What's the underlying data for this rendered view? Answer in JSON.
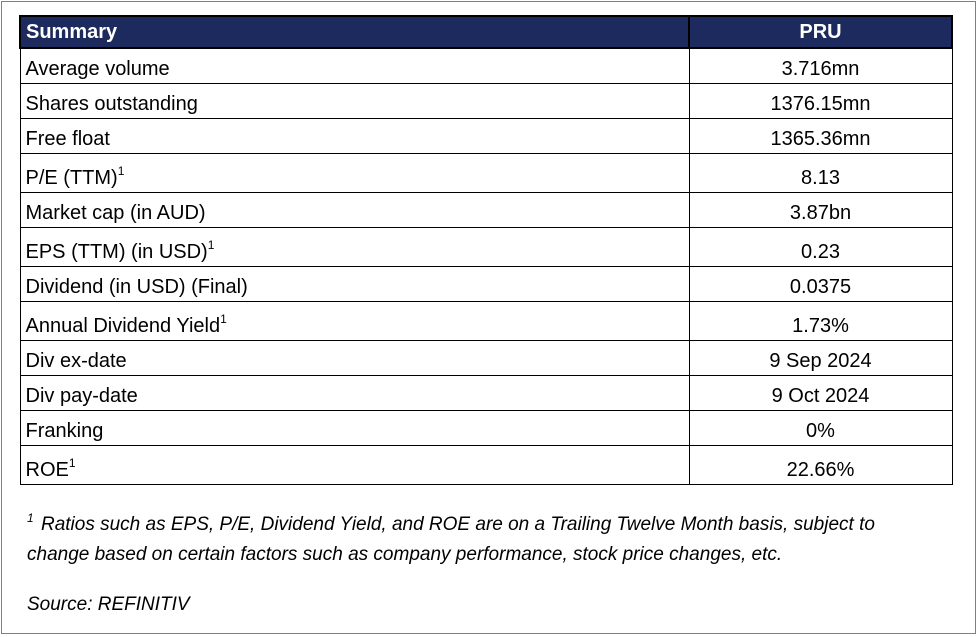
{
  "table": {
    "header": {
      "label": "Summary",
      "value": "PRU"
    },
    "rows": [
      {
        "label": "Average volume",
        "sup": "",
        "value": "3.716mn"
      },
      {
        "label": "Shares outstanding",
        "sup": "",
        "value": "1376.15mn"
      },
      {
        "label": "Free float",
        "sup": "",
        "value": "1365.36mn"
      },
      {
        "label": "P/E (TTM)",
        "sup": "1",
        "value": "8.13"
      },
      {
        "label": "Market cap (in AUD)",
        "sup": "",
        "value": "3.87bn"
      },
      {
        "label": "EPS (TTM) (in USD)",
        "sup": "1",
        "value": "0.23"
      },
      {
        "label": "Dividend (in USD) (Final)",
        "sup": "",
        "value": "0.0375"
      },
      {
        "label": "Annual Dividend Yield",
        "sup": "1",
        "value": "1.73%"
      },
      {
        "label": "Div ex-date",
        "sup": "",
        "value": "9 Sep 2024"
      },
      {
        "label": "Div pay-date",
        "sup": "",
        "value": "9 Oct 2024"
      },
      {
        "label": "Franking",
        "sup": "",
        "value": "0%"
      },
      {
        "label": "ROE",
        "sup": "1",
        "value": "22.66%"
      }
    ]
  },
  "footnote": {
    "marker": "1",
    "line1": "Ratios such as EPS, P/E, Dividend Yield, and ROE are on a Trailing Twelve Month basis, subject to",
    "line2": "change based on certain factors such as company performance, stock price changes, etc."
  },
  "source": "Source: REFINITIV",
  "colors": {
    "header_bg": "#1d2a5e",
    "header_text": "#ffffff",
    "frame_border": "#5b86c3"
  }
}
